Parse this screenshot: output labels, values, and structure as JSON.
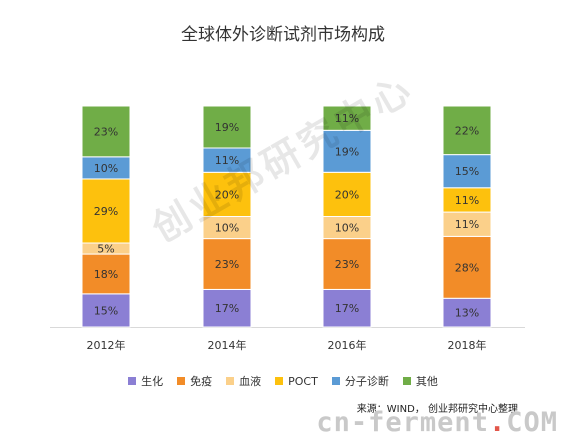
{
  "title": "全球体外诊断试剂市场构成",
  "watermark": "创业邦研究中心",
  "source": "来源：WIND， 创业邦研究中心整理",
  "brand": {
    "left": "cn-ferment",
    "dot": ".",
    "right": "COM"
  },
  "chart_data": {
    "type": "bar",
    "stacked": true,
    "title": "全球体外诊断试剂市场构成",
    "xlabel": "",
    "ylabel": "",
    "ylim": [
      0,
      100
    ],
    "categories": [
      "2012年",
      "2014年",
      "2016年",
      "2018年"
    ],
    "legend_position": "bottom",
    "series": [
      {
        "name": "生化",
        "color": "#8B7FD4",
        "values": [
          15,
          17,
          17,
          13
        ]
      },
      {
        "name": "免疫",
        "color": "#F28C28",
        "values": [
          18,
          23,
          23,
          28
        ]
      },
      {
        "name": "血液",
        "color": "#FBD08A",
        "values": [
          5,
          10,
          10,
          11
        ]
      },
      {
        "name": "POCT",
        "color": "#FDC10D",
        "values": [
          29,
          20,
          20,
          11
        ]
      },
      {
        "name": "分子诊断",
        "color": "#5B9BD5",
        "values": [
          10,
          11,
          19,
          15
        ]
      },
      {
        "name": "其他",
        "color": "#70AD47",
        "values": [
          23,
          19,
          11,
          22
        ]
      }
    ]
  }
}
